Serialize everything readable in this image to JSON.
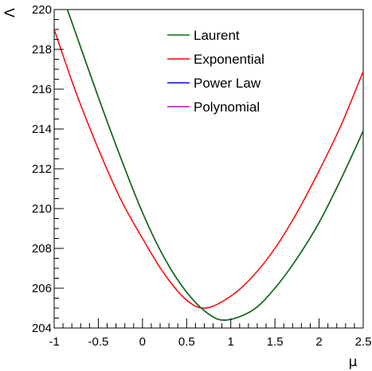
{
  "chart_data": {
    "type": "line",
    "title": "",
    "xlabel": "μ",
    "ylabel": "Λ",
    "xlim": [
      -1,
      2.5
    ],
    "ylim": [
      204,
      220
    ],
    "xticks": [
      -1,
      -0.5,
      0,
      0.5,
      1,
      1.5,
      2,
      2.5
    ],
    "xtick_labels": [
      "-1",
      "-0.5",
      "0",
      "0.5",
      "1",
      "1.5",
      "2",
      "2.5"
    ],
    "yticks": [
      204,
      206,
      208,
      210,
      212,
      214,
      216,
      218,
      220
    ],
    "ytick_labels": [
      "204",
      "206",
      "208",
      "210",
      "212",
      "214",
      "216",
      "218",
      "220"
    ],
    "grid": false,
    "legend_position": "top-center",
    "series": [
      {
        "name": "Laurent",
        "color": "#007700",
        "x": [
          -0.85,
          -0.5,
          -0.25,
          0,
          0.25,
          0.5,
          0.75,
          0.95,
          1.25,
          1.5,
          1.75,
          2,
          2.25,
          2.5
        ],
        "y": [
          220.0,
          215.6,
          212.6,
          209.8,
          207.5,
          205.8,
          204.7,
          204.4,
          204.9,
          206.0,
          207.5,
          209.3,
          211.5,
          213.9
        ]
      },
      {
        "name": "Exponential",
        "color": "#ff0000",
        "x": [
          -1,
          -0.75,
          -0.5,
          -0.25,
          0,
          0.25,
          0.5,
          0.72,
          1,
          1.25,
          1.5,
          1.75,
          2,
          2.25,
          2.5
        ],
        "y": [
          219.0,
          215.8,
          213.0,
          210.5,
          208.5,
          206.7,
          205.4,
          205.0,
          205.6,
          206.6,
          208.0,
          209.8,
          211.9,
          214.2,
          216.9
        ]
      },
      {
        "name": "Power Law",
        "color": "#0000ff",
        "x": [
          -0.85,
          -0.5,
          -0.25,
          0,
          0.25,
          0.5,
          0.75,
          0.95,
          1.25,
          1.5,
          1.75,
          2,
          2.25,
          2.5
        ],
        "y": [
          220.0,
          215.6,
          212.6,
          209.8,
          207.5,
          205.8,
          204.7,
          204.4,
          204.9,
          206.0,
          207.5,
          209.3,
          211.5,
          213.9
        ]
      },
      {
        "name": "Polynomial",
        "color": "#cc00cc",
        "x": [
          -0.85,
          -0.5,
          -0.25,
          0,
          0.25,
          0.5,
          0.75,
          0.95,
          1.25,
          1.5,
          1.75,
          2,
          2.25,
          2.5
        ],
        "y": [
          220.0,
          215.6,
          212.6,
          209.8,
          207.5,
          205.8,
          204.7,
          204.4,
          204.9,
          206.0,
          207.5,
          209.3,
          211.5,
          213.9
        ]
      }
    ],
    "draw_order": [
      1,
      2,
      3,
      0
    ]
  }
}
